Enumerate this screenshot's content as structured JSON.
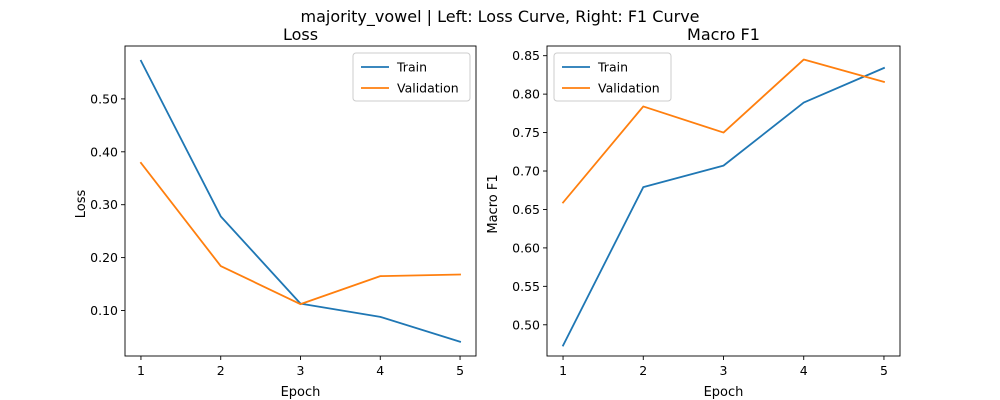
{
  "suptitle": "majority_vowel | Left: Loss Curve, Right: F1 Curve",
  "chart_data": [
    {
      "type": "line",
      "title": "Loss",
      "xlabel": "Epoch",
      "ylabel": "Loss",
      "x": [
        1,
        2,
        3,
        4,
        5
      ],
      "xticks": [
        1,
        2,
        3,
        4,
        5
      ],
      "yticks": [
        0.1,
        0.2,
        0.3,
        0.4,
        0.5
      ],
      "xlim": [
        0.8,
        5.2
      ],
      "ylim": [
        0.014,
        0.6
      ],
      "grid": false,
      "legend_position": "top-right",
      "series": [
        {
          "name": "Train",
          "color": "#1f77b4",
          "values": [
            0.572,
            0.278,
            0.113,
            0.088,
            0.041
          ]
        },
        {
          "name": "Validation",
          "color": "#ff7f0e",
          "values": [
            0.379,
            0.184,
            0.112,
            0.165,
            0.168
          ]
        }
      ]
    },
    {
      "type": "line",
      "title": "Macro F1",
      "xlabel": "Epoch",
      "ylabel": "Macro F1",
      "x": [
        1,
        2,
        3,
        4,
        5
      ],
      "xticks": [
        1,
        2,
        3,
        4,
        5
      ],
      "yticks": [
        0.5,
        0.55,
        0.6,
        0.65,
        0.7,
        0.75,
        0.8,
        0.85
      ],
      "xlim": [
        0.8,
        5.2
      ],
      "ylim": [
        0.4594,
        0.8626
      ],
      "grid": false,
      "legend_position": "top-left",
      "series": [
        {
          "name": "Train",
          "color": "#1f77b4",
          "values": [
            0.473,
            0.679,
            0.707,
            0.789,
            0.834
          ]
        },
        {
          "name": "Validation",
          "color": "#ff7f0e",
          "values": [
            0.659,
            0.784,
            0.75,
            0.845,
            0.816
          ]
        }
      ]
    }
  ]
}
